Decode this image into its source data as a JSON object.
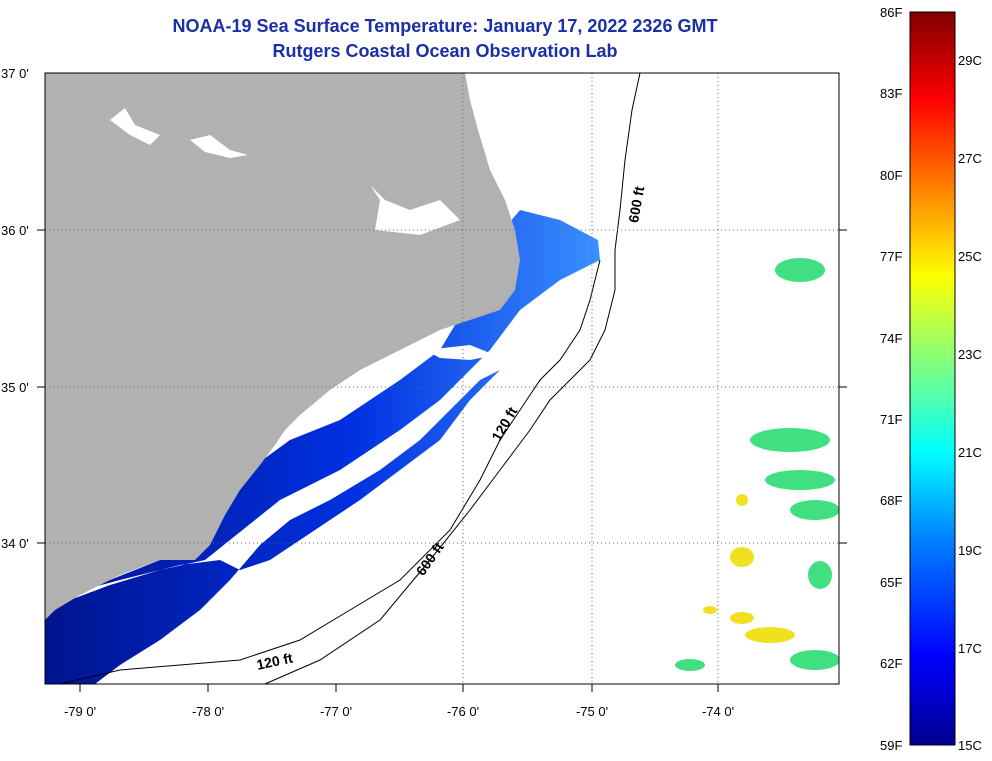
{
  "header": {
    "title_line1": "NOAA-19 Sea Surface Temperature:  January 17, 2022 2326 GMT",
    "title_line2": "Rutgers Coastal Ocean Observation Lab"
  },
  "map": {
    "latitude_labels": [
      "37 0'",
      "36 0'",
      "35 0'",
      "34 0'"
    ],
    "longitude_labels": [
      "-79 0'",
      "-78 0'",
      "-77 0'",
      "-76 0'",
      "-75 0'",
      "-74 0'"
    ],
    "contours": {
      "inshore_label": "120 ft",
      "offshore_label": "600 ft"
    },
    "colors": {
      "land": "#b1b1b1",
      "cloud_masked": "#ffffff",
      "cold_water": "#00148f",
      "coastal_water": "#0040ff",
      "warm_patch": "#f0e020"
    }
  },
  "colorbar": {
    "fahrenheit_labels": [
      "86F",
      "83F",
      "80F",
      "77F",
      "74F",
      "71F",
      "68F",
      "65F",
      "62F",
      "59F"
    ],
    "celsius_labels": [
      "29C",
      "27C",
      "25C",
      "23C",
      "21C",
      "19C",
      "17C",
      "15C"
    ],
    "range_f": [
      59,
      86
    ],
    "range_c": [
      15,
      30
    ]
  }
}
